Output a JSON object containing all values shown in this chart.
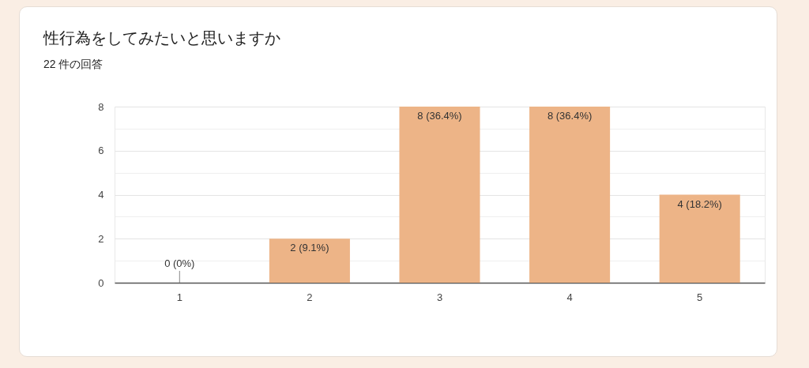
{
  "chart_data": {
    "type": "bar",
    "title": "性行為をしてみたいと思いますか",
    "subtitle": "22 件の回答",
    "categories": [
      "1",
      "2",
      "3",
      "4",
      "5"
    ],
    "values": [
      0,
      2,
      8,
      8,
      4
    ],
    "color": "#edb487",
    "value_labels": [
      "0 (0%)",
      "2 (9.1%)",
      "8 (36.4%)",
      "8 (36.4%)",
      "4 (18.2%)"
    ],
    "ylim": [
      0,
      8
    ],
    "yticks": [
      0,
      {
        "value": 1,
        "label": null
      },
      2,
      {
        "value": 3,
        "label": null
      },
      4,
      {
        "value": 5,
        "label": null
      },
      6,
      {
        "value": 7,
        "label": null
      },
      8
    ],
    "grid": true
  }
}
